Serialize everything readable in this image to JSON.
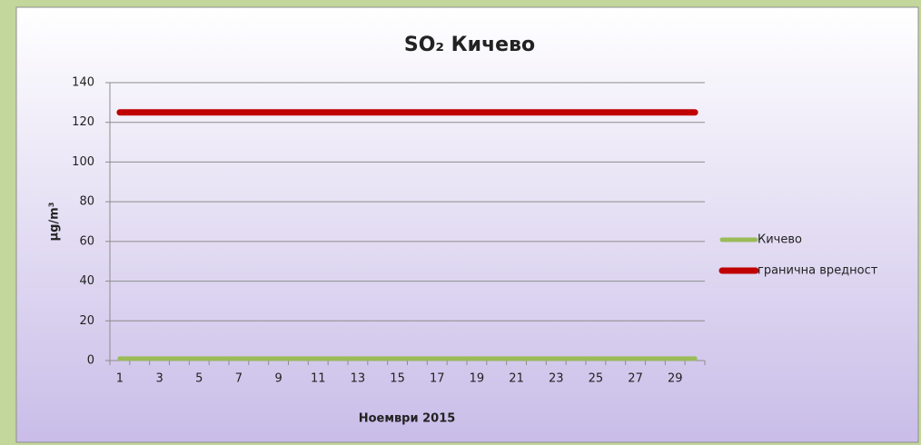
{
  "chart_data": {
    "type": "line",
    "title": "SO₂ Кичево",
    "x_label": "Ноември 2015",
    "y_label": "μg/m³",
    "categories": [
      1,
      null,
      3,
      null,
      5,
      null,
      7,
      null,
      9,
      null,
      11,
      null,
      13,
      null,
      15,
      null,
      17,
      null,
      19,
      null,
      21,
      null,
      23,
      null,
      25,
      null,
      27,
      null,
      29,
      null
    ],
    "series": [
      {
        "name": "Кичево",
        "color": "#9bbb59",
        "values": [
          1,
          1,
          1,
          1,
          1,
          1,
          1,
          1,
          1,
          1,
          1,
          1,
          1,
          1,
          1,
          1,
          1,
          1,
          1,
          1,
          1,
          1,
          1,
          1,
          1,
          1,
          1,
          1,
          1,
          1
        ]
      },
      {
        "name": "гранична вредност",
        "color": "#c00000",
        "values": [
          125,
          125,
          125,
          125,
          125,
          125,
          125,
          125,
          125,
          125,
          125,
          125,
          125,
          125,
          125,
          125,
          125,
          125,
          125,
          125,
          125,
          125,
          125,
          125,
          125,
          125,
          125,
          125,
          125,
          125
        ]
      }
    ],
    "ylim": [
      0,
      140
    ],
    "yticks": [
      0,
      20,
      40,
      60,
      80,
      100,
      120,
      140
    ],
    "grid": true,
    "legend": "right"
  }
}
